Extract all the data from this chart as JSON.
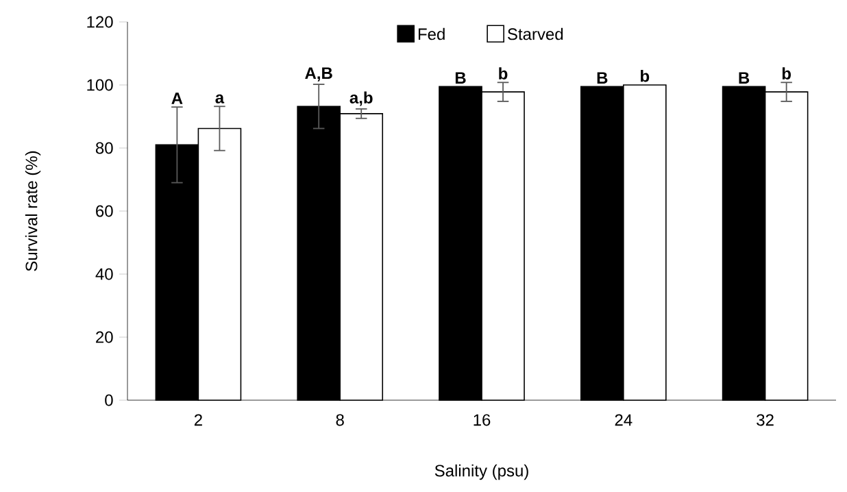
{
  "chart_data": {
    "type": "bar",
    "xlabel": "Salinity (psu)",
    "ylabel": "Survival rate (%)",
    "categories": [
      "2",
      "8",
      "16",
      "24",
      "32"
    ],
    "series": [
      {
        "name": "Fed",
        "color": "#000000",
        "values": [
          81,
          93.2,
          99.5,
          99.5,
          99.5
        ],
        "errors": [
          12,
          7,
          null,
          null,
          null
        ]
      },
      {
        "name": "Starved",
        "color": "#ffffff",
        "values": [
          86.2,
          90.9,
          97.8,
          100,
          97.8
        ],
        "errors": [
          7,
          1.5,
          3,
          null,
          3
        ]
      }
    ],
    "ylim": [
      0,
      120
    ],
    "yticks": [
      0,
      20,
      40,
      60,
      80,
      100,
      120
    ],
    "legend": "top",
    "grid": false,
    "annotations": [
      "A",
      "a",
      "A,B",
      "a,b",
      "B",
      "b",
      "B",
      "b",
      "B",
      "b"
    ]
  }
}
